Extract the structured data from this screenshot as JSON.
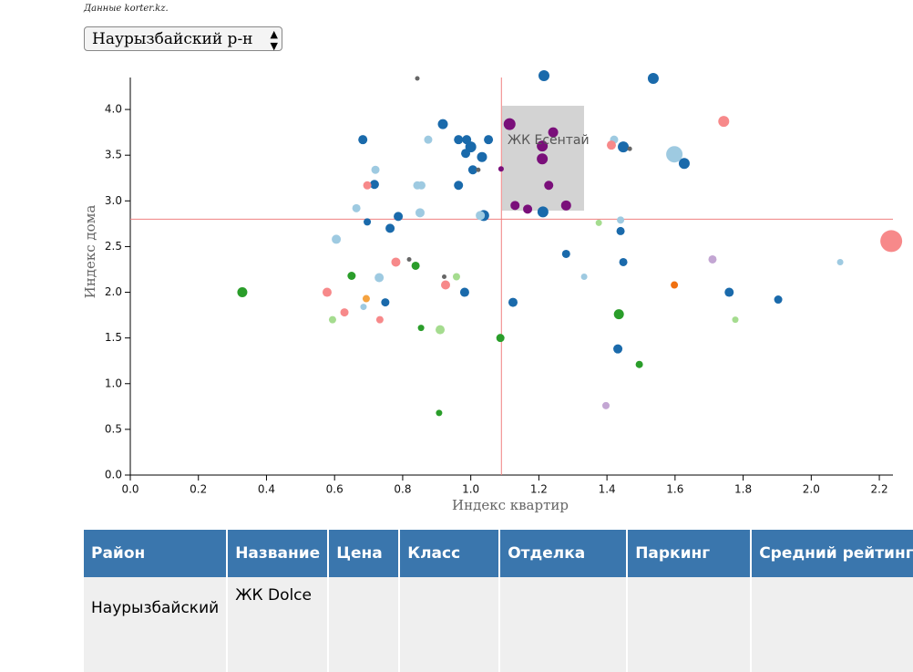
{
  "source": "Данные korter.kz.",
  "select": {
    "selected": "Наурызбайский р-н"
  },
  "chart_data": {
    "type": "scatter",
    "x_label": "Индекс квартир",
    "y_label": "Индекс дома",
    "xlim": [
      0,
      2.24
    ],
    "ylim": [
      0,
      4.35
    ],
    "xticks": [
      {
        "value": 0,
        "label": "0.0"
      },
      0.2,
      0.4,
      0.6,
      0.8,
      {
        "value": 1,
        "label": "1.0"
      },
      1.2,
      1.4,
      1.6,
      1.8,
      {
        "value": 2,
        "label": "2.0"
      },
      2.2
    ],
    "yticks": [
      {
        "value": 0,
        "label": "0.0"
      },
      0.5,
      {
        "value": 1,
        "label": "1.0"
      },
      1.5,
      {
        "value": 2,
        "label": "2.0"
      },
      2.5,
      {
        "value": 3,
        "label": "3.0"
      },
      3.5,
      {
        "value": 4,
        "label": "4.0"
      }
    ],
    "crosshair": {
      "x": 1.09,
      "y": 2.8,
      "color": "#f08080"
    },
    "tooltip": "ЖК Есентай",
    "series": [
      {
        "color": "#1a6aab",
        "x": [
          1.215,
          1.536,
          0.918,
          0.683,
          0.964,
          0.988,
          1.052,
          1.0,
          0.985,
          1.033,
          1.006,
          1.448,
          1.627,
          0.717,
          0.964,
          1.038,
          1.212,
          0.787,
          0.696,
          0.763,
          1.44,
          1.28,
          1.448,
          0.982,
          0.749,
          1.124,
          1.432,
          1.759,
          1.903
        ],
        "values": [
          4.37,
          4.34,
          3.84,
          3.67,
          3.67,
          3.67,
          3.67,
          3.59,
          3.52,
          3.48,
          3.34,
          3.59,
          3.41,
          3.18,
          3.17,
          2.84,
          2.88,
          2.83,
          2.77,
          2.7,
          2.67,
          2.42,
          2.33,
          2.0,
          1.89,
          1.89,
          1.38,
          2.0,
          1.92
        ],
        "sizes": [
          6,
          6,
          5.5,
          5,
          5,
          5,
          5,
          6,
          5,
          5.5,
          5,
          6,
          6,
          5,
          5,
          6,
          6,
          5,
          4,
          5,
          4.5,
          4.5,
          4.5,
          5,
          4.5,
          5,
          5,
          5,
          4.5
        ]
      },
      {
        "color": "#7a0f7a",
        "x": [
          1.114,
          1.242,
          1.21,
          1.21,
          1.089,
          1.229,
          1.13,
          1.167,
          1.28
        ],
        "values": [
          3.84,
          3.75,
          3.6,
          3.46,
          3.35,
          3.17,
          2.95,
          2.91,
          2.95
        ],
        "sizes": [
          6.5,
          5.5,
          6,
          6,
          3,
          5,
          5,
          5,
          5.5
        ]
      },
      {
        "color": "#9ecae1",
        "x": [
          0.875,
          0.72,
          0.843,
          0.855,
          0.664,
          0.851,
          0.605,
          0.731,
          0.685,
          1.421,
          1.598,
          1.44,
          1.333,
          2.085,
          1.028
        ],
        "values": [
          3.67,
          3.34,
          3.17,
          3.17,
          2.92,
          2.87,
          2.58,
          2.16,
          1.84,
          3.67,
          3.51,
          2.79,
          2.17,
          2.33,
          2.84
        ],
        "sizes": [
          4.5,
          4.5,
          4.5,
          4.5,
          4.5,
          5,
          5,
          5,
          3.5,
          4.5,
          9,
          4,
          3.5,
          3.5,
          5
        ]
      },
      {
        "color": "#f7898a",
        "x": [
          0.696,
          1.413,
          1.743,
          2.235,
          0.78,
          0.926,
          0.578,
          0.629,
          0.733
        ],
        "values": [
          3.17,
          3.61,
          3.87,
          2.56,
          2.33,
          2.08,
          2.0,
          1.78,
          1.7
        ],
        "sizes": [
          4.5,
          5,
          6,
          12,
          5,
          5,
          5,
          4.5,
          4
        ]
      },
      {
        "color": "#2a9d2a",
        "x": [
          0.329,
          0.65,
          0.838,
          0.854,
          1.087,
          1.435,
          1.495,
          0.907
        ],
        "values": [
          2.0,
          2.18,
          2.29,
          1.61,
          1.5,
          1.76,
          1.21,
          0.68
        ],
        "sizes": [
          5.5,
          4.5,
          4.5,
          3.5,
          4.5,
          5.5,
          4,
          3.5
        ]
      },
      {
        "color": "#a5dc8f",
        "x": [
          0.594,
          0.958,
          0.91,
          1.376,
          1.777
        ],
        "values": [
          1.7,
          2.17,
          1.59,
          2.76,
          1.7
        ],
        "sizes": [
          4,
          4,
          5,
          3.5,
          3.5
        ]
      },
      {
        "color": "#f5a340",
        "x": [
          0.693
        ],
        "values": [
          1.93
        ],
        "sizes": [
          4
        ]
      },
      {
        "color": "#f07010",
        "x": [
          1.598
        ],
        "values": [
          2.08
        ],
        "sizes": [
          4
        ]
      },
      {
        "color": "#c3a6d3",
        "x": [
          1.71,
          1.397
        ],
        "values": [
          2.36,
          0.76
        ],
        "sizes": [
          4.5,
          4
        ]
      },
      {
        "color": "#666666",
        "x": [
          0.843,
          1.022,
          1.467,
          0.819,
          0.922
        ],
        "values": [
          4.34,
          3.34,
          3.57,
          2.36,
          2.17
        ],
        "sizes": [
          2.5,
          2.5,
          2.5,
          2.5,
          2.5
        ]
      }
    ]
  },
  "table": {
    "headers": [
      "Район",
      "Название",
      "Цена",
      "Класс",
      "Отделка",
      "Паркинг",
      "Средний рейтинг"
    ],
    "rows": [
      [
        "Наурызбайский",
        "ЖК Dolce"
      ]
    ]
  }
}
